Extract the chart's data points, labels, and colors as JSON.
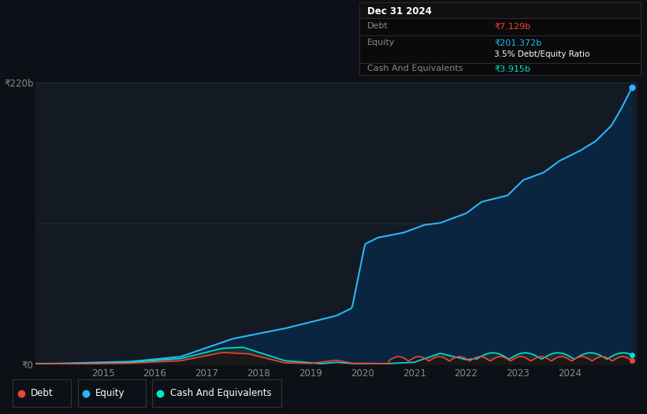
{
  "background_color": "#0d1117",
  "plot_bg_color": "#131a24",
  "title_box": {
    "date": "Dec 31 2024",
    "debt_label": "Debt",
    "debt_value": "₹7.129b",
    "equity_label": "Equity",
    "equity_value": "₹201.372b",
    "ratio_text": "3.5% Debt/Equity Ratio",
    "cash_label": "Cash And Equivalents",
    "cash_value": "₹3.915b"
  },
  "ylabel_top": "₹220b",
  "ylabel_zero": "₹0",
  "x_ticks": [
    2015,
    2016,
    2017,
    2018,
    2019,
    2020,
    2021,
    2022,
    2023,
    2024
  ],
  "equity_color": "#29b6f6",
  "equity_fill_color": "#0a2540",
  "debt_color": "#f44336",
  "cash_color": "#00e5cc",
  "cash_fill_color": "#1a3030",
  "debt_fill_color": "#1a1010",
  "ylim": [
    0,
    220
  ],
  "xlim_start": 2013.7,
  "xlim_end": 2025.3,
  "legend_labels": [
    "Debt",
    "Equity",
    "Cash And Equivalents"
  ],
  "legend_colors": [
    "#f44336",
    "#29b6f6",
    "#00e5cc"
  ],
  "grid_color": "#1e2a38",
  "tick_color": "#888888"
}
